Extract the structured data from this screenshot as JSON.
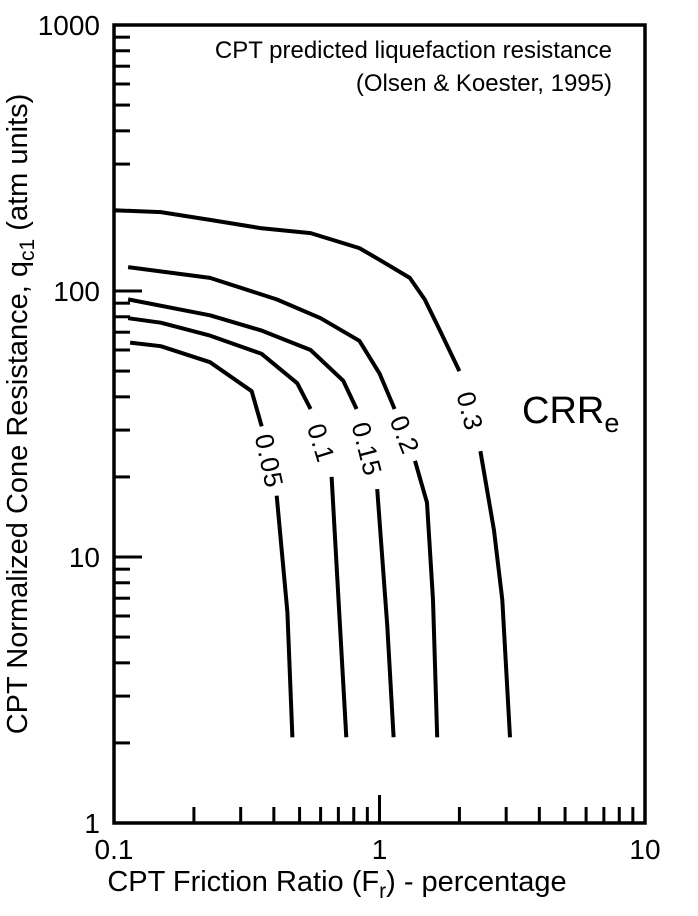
{
  "chart_data": {
    "type": "line",
    "subtype": "contour-plot",
    "title": "CPT predicted liquefaction resistance",
    "subtitle": "(Olsen & Koester, 1995)",
    "xlabel": "CPT Friction Ratio (Fr) - percentage",
    "xlabel_parts": [
      "CPT Friction Ratio (F",
      "r",
      ") - percentage"
    ],
    "ylabel": "CPT Normalized Cone Resistance, qc1 (atm units)",
    "ylabel_parts": [
      "CPT Normalized Cone Resistance, q",
      "c1",
      " (atm units)"
    ],
    "x_scale": "log",
    "y_scale": "log",
    "xlim": [
      0.1,
      10
    ],
    "ylim": [
      1,
      1000
    ],
    "x_tick_values": [
      0.1,
      1,
      10
    ],
    "x_tick_labels": [
      "0.1",
      "1",
      "10"
    ],
    "y_tick_values": [
      1,
      10,
      100,
      1000
    ],
    "y_tick_labels": [
      "1",
      "10",
      "100",
      "1000"
    ],
    "grid": false,
    "legend": "none",
    "tick_style": "inward, log minor ticks on left and bottom axes only",
    "colors": {
      "line": "#000000",
      "text": "#000000",
      "background": "#ffffff"
    },
    "annotation": {
      "text": "CRR",
      "subscript": "e",
      "x": 5.0,
      "y": 34
    },
    "series": [
      {
        "name": "0.05",
        "label_at": [
          0.38,
          22
        ],
        "segments": [
          [
            [
              0.115,
              64
            ],
            [
              0.15,
              62
            ],
            [
              0.23,
              54
            ],
            [
              0.33,
              42
            ],
            [
              0.36,
              31
            ]
          ],
          [
            [
              0.41,
              17
            ],
            [
              0.45,
              6.2
            ],
            [
              0.47,
              2.1
            ]
          ]
        ]
      },
      {
        "name": "0.1",
        "label_at": [
          0.6,
          27
        ],
        "segments": [
          [
            [
              0.113,
              79
            ],
            [
              0.15,
              76
            ],
            [
              0.23,
              68
            ],
            [
              0.36,
              58
            ],
            [
              0.49,
              45
            ],
            [
              0.55,
              36
            ]
          ],
          [
            [
              0.66,
              20
            ],
            [
              0.71,
              5.5
            ],
            [
              0.75,
              2.1
            ]
          ]
        ]
      },
      {
        "name": "0.15",
        "label_at": [
          0.9,
          26
        ],
        "segments": [
          [
            [
              0.113,
              93
            ],
            [
              0.23,
              81
            ],
            [
              0.36,
              71
            ],
            [
              0.55,
              60
            ],
            [
              0.73,
              46
            ],
            [
              0.82,
              36
            ]
          ],
          [
            [
              0.98,
              18
            ],
            [
              1.07,
              5.5
            ],
            [
              1.13,
              2.1
            ]
          ]
        ]
      },
      {
        "name": "0.2",
        "label_at": [
          1.25,
          29
        ],
        "segments": [
          [
            [
              0.113,
              123
            ],
            [
              0.23,
              112
            ],
            [
              0.41,
              93
            ],
            [
              0.6,
              79
            ],
            [
              0.84,
              65
            ],
            [
              1.0,
              49
            ],
            [
              1.14,
              36
            ]
          ],
          [
            [
              1.36,
              23
            ],
            [
              1.51,
              16
            ],
            [
              1.59,
              6.9
            ],
            [
              1.65,
              2.1
            ]
          ]
        ]
      },
      {
        "name": "0.3",
        "label_at": [
          2.2,
          33
        ],
        "segments": [
          [
            [
              0.1,
              201
            ],
            [
              0.15,
              198
            ],
            [
              0.23,
              185
            ],
            [
              0.36,
              172
            ],
            [
              0.55,
              165
            ],
            [
              0.84,
              145
            ],
            [
              1.0,
              131
            ],
            [
              1.3,
              112
            ],
            [
              1.48,
              93
            ],
            [
              1.69,
              71
            ],
            [
              2.0,
              50
            ]
          ],
          [
            [
              2.4,
              25
            ],
            [
              2.7,
              12.6
            ],
            [
              2.9,
              6.9
            ],
            [
              3.1,
              2.1
            ]
          ]
        ]
      }
    ]
  }
}
